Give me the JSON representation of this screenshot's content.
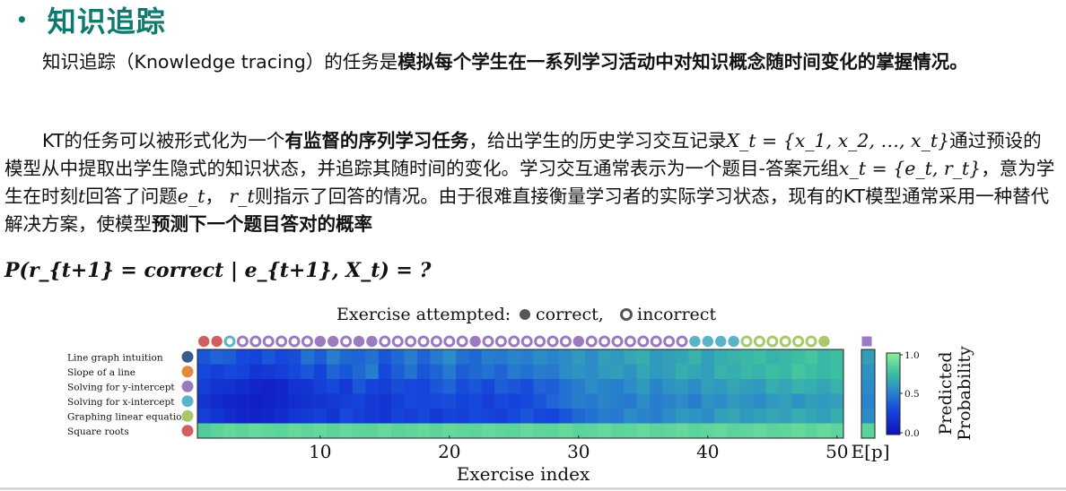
{
  "header": {
    "bullet": "•",
    "title": "知识追踪"
  },
  "para1": {
    "text": "知识追踪（Knowledge tracing）的任务是",
    "bold": "模拟每个学生在一系列学习活动中对知识概念随时间变化的掌握情况。"
  },
  "para2": {
    "p1": "KT的任务可以被形式化为一个",
    "bold1": "有监督的序列学习任务",
    "p2": "，给出学生的历史学习交互记录",
    "math1": "X_t = {x_1, x_2, …, x_t}",
    "p3": "通过预设的模型从中提取出学生隐式的知识状态，并追踪其随时间的变化。学习交互通常表示为一个题目-答案元组",
    "math2": "x_t = {e_t, r_t}",
    "p4": "，意为学生在时刻",
    "math3": "t",
    "p5": "回答了问题",
    "math4": "e_t",
    "p6": "， ",
    "math5": "r_t",
    "p7": "则指示了回答的情况。由于很难直接衡量学习者的实际学习状态，现有的KT模型通常采用一种替代解决方案，使模型",
    "bold2": "预测下一个题目答对的概率"
  },
  "formula": "P(r_{t+1} = correct | e_{t+1}, X_t) = ?",
  "chart_data": {
    "type": "heatmap",
    "title": "Exercise attempted: ● correct, ◎ incorrect",
    "title_parts": {
      "prefix": "Exercise attempted:",
      "correct": "correct,",
      "incorrect": "incorrect"
    },
    "xlabel": "Exercise index",
    "xticks": [
      10,
      20,
      30,
      40,
      50
    ],
    "rows": [
      "Line graph intuition",
      "Slope of a line",
      "Solving for y-intercept",
      "Solving for x-intercept",
      "Graphing linear equations",
      "Square roots"
    ],
    "row_colors": [
      "#3c5a8a",
      "#e08a3c",
      "#9a7bbf",
      "#5bb3c8",
      "#a8c86a",
      "#d06060"
    ],
    "exercises": [
      {
        "c": 5,
        "ok": true
      },
      {
        "c": 5,
        "ok": true
      },
      {
        "c": 3,
        "ok": false
      },
      {
        "c": 2,
        "ok": false
      },
      {
        "c": 2,
        "ok": false
      },
      {
        "c": 2,
        "ok": false
      },
      {
        "c": 2,
        "ok": false
      },
      {
        "c": 2,
        "ok": false
      },
      {
        "c": 2,
        "ok": false
      },
      {
        "c": 2,
        "ok": true
      },
      {
        "c": 2,
        "ok": true
      },
      {
        "c": 2,
        "ok": false
      },
      {
        "c": 2,
        "ok": true
      },
      {
        "c": 2,
        "ok": true
      },
      {
        "c": 2,
        "ok": false
      },
      {
        "c": 2,
        "ok": false
      },
      {
        "c": 2,
        "ok": false
      },
      {
        "c": 2,
        "ok": false
      },
      {
        "c": 2,
        "ok": false
      },
      {
        "c": 2,
        "ok": false
      },
      {
        "c": 2,
        "ok": false
      },
      {
        "c": 2,
        "ok": true
      },
      {
        "c": 2,
        "ok": false
      },
      {
        "c": 2,
        "ok": false
      },
      {
        "c": 2,
        "ok": false
      },
      {
        "c": 2,
        "ok": false
      },
      {
        "c": 2,
        "ok": false
      },
      {
        "c": 2,
        "ok": false
      },
      {
        "c": 2,
        "ok": false
      },
      {
        "c": 2,
        "ok": true
      },
      {
        "c": 2,
        "ok": false
      },
      {
        "c": 2,
        "ok": false
      },
      {
        "c": 2,
        "ok": false
      },
      {
        "c": 2,
        "ok": false
      },
      {
        "c": 2,
        "ok": false
      },
      {
        "c": 2,
        "ok": false
      },
      {
        "c": 2,
        "ok": false
      },
      {
        "c": 2,
        "ok": false
      },
      {
        "c": 3,
        "ok": true
      },
      {
        "c": 3,
        "ok": true
      },
      {
        "c": 3,
        "ok": true
      },
      {
        "c": 3,
        "ok": true
      },
      {
        "c": 4,
        "ok": false
      },
      {
        "c": 4,
        "ok": false
      },
      {
        "c": 4,
        "ok": false
      },
      {
        "c": 4,
        "ok": false
      },
      {
        "c": 4,
        "ok": false
      },
      {
        "c": 4,
        "ok": false
      },
      {
        "c": 4,
        "ok": true
      },
      {
        "c": 2,
        "ok": true,
        "sq": true
      }
    ],
    "values": [
      [
        0.35,
        0.4,
        0.38,
        0.3,
        0.28,
        0.35,
        0.3,
        0.32,
        0.45,
        0.38,
        0.5,
        0.42,
        0.4,
        0.45,
        0.35,
        0.42,
        0.5,
        0.4,
        0.48,
        0.55,
        0.45,
        0.42,
        0.5,
        0.48,
        0.52,
        0.5,
        0.55,
        0.52,
        0.55,
        0.6,
        0.55,
        0.62,
        0.6,
        0.65,
        0.68,
        0.6,
        0.62,
        0.65,
        0.7,
        0.62,
        0.68,
        0.7,
        0.72,
        0.75,
        0.7,
        0.72,
        0.75,
        0.78,
        0.72,
        0.75
      ],
      [
        0.3,
        0.25,
        0.3,
        0.28,
        0.2,
        0.22,
        0.25,
        0.3,
        0.35,
        0.28,
        0.4,
        0.35,
        0.42,
        0.5,
        0.3,
        0.38,
        0.45,
        0.35,
        0.4,
        0.48,
        0.38,
        0.42,
        0.45,
        0.4,
        0.48,
        0.45,
        0.5,
        0.48,
        0.55,
        0.58,
        0.55,
        0.6,
        0.62,
        0.58,
        0.65,
        0.6,
        0.62,
        0.68,
        0.65,
        0.62,
        0.7,
        0.68,
        0.72,
        0.7,
        0.75,
        0.72,
        0.78,
        0.75,
        0.72,
        0.75
      ],
      [
        0.25,
        0.2,
        0.18,
        0.15,
        0.12,
        0.1,
        0.12,
        0.18,
        0.2,
        0.25,
        0.3,
        0.22,
        0.35,
        0.28,
        0.25,
        0.32,
        0.3,
        0.28,
        0.35,
        0.4,
        0.32,
        0.35,
        0.3,
        0.38,
        0.35,
        0.32,
        0.4,
        0.38,
        0.45,
        0.5,
        0.55,
        0.52,
        0.5,
        0.55,
        0.6,
        0.52,
        0.58,
        0.6,
        0.55,
        0.62,
        0.6,
        0.65,
        0.62,
        0.6,
        0.68,
        0.65,
        0.7,
        0.68,
        0.65,
        0.7
      ],
      [
        0.2,
        0.15,
        0.12,
        0.1,
        0.08,
        0.1,
        0.12,
        0.15,
        0.18,
        0.2,
        0.22,
        0.25,
        0.28,
        0.22,
        0.2,
        0.25,
        0.3,
        0.28,
        0.3,
        0.32,
        0.28,
        0.3,
        0.25,
        0.3,
        0.28,
        0.3,
        0.35,
        0.4,
        0.45,
        0.5,
        0.48,
        0.52,
        0.5,
        0.48,
        0.55,
        0.5,
        0.52,
        0.55,
        0.5,
        0.58,
        0.55,
        0.6,
        0.58,
        0.55,
        0.6,
        0.62,
        0.58,
        0.62,
        0.6,
        0.62
      ],
      [
        0.25,
        0.2,
        0.15,
        0.12,
        0.1,
        0.12,
        0.15,
        0.2,
        0.22,
        0.25,
        0.2,
        0.3,
        0.25,
        0.22,
        0.2,
        0.28,
        0.25,
        0.3,
        0.22,
        0.28,
        0.25,
        0.3,
        0.28,
        0.25,
        0.3,
        0.35,
        0.3,
        0.28,
        0.35,
        0.42,
        0.45,
        0.5,
        0.48,
        0.55,
        0.52,
        0.5,
        0.55,
        0.6,
        0.58,
        0.55,
        0.62,
        0.65,
        0.6,
        0.62,
        0.65,
        0.62,
        0.68,
        0.65,
        0.62,
        0.68
      ],
      [
        0.82,
        0.85,
        0.88,
        0.85,
        0.88,
        0.86,
        0.85,
        0.88,
        0.86,
        0.88,
        0.85,
        0.88,
        0.86,
        0.85,
        0.88,
        0.85,
        0.86,
        0.88,
        0.85,
        0.88,
        0.86,
        0.85,
        0.88,
        0.86,
        0.85,
        0.88,
        0.86,
        0.85,
        0.88,
        0.85,
        0.86,
        0.88,
        0.85,
        0.86,
        0.88,
        0.85,
        0.86,
        0.88,
        0.85,
        0.86,
        0.88,
        0.85,
        0.86,
        0.88,
        0.85,
        0.86,
        0.88,
        0.85,
        0.88,
        0.86
      ]
    ],
    "ep_label": "E[p]",
    "ep_values": [
      0.62,
      0.58,
      0.55,
      0.52,
      0.55,
      0.85
    ],
    "colorbar": {
      "ticks": [
        "1.0",
        "0.5",
        "0.0"
      ],
      "label": "Predicted Probability",
      "label_lines": [
        "Predicted",
        "Probability"
      ],
      "range": [
        0,
        1
      ]
    }
  }
}
